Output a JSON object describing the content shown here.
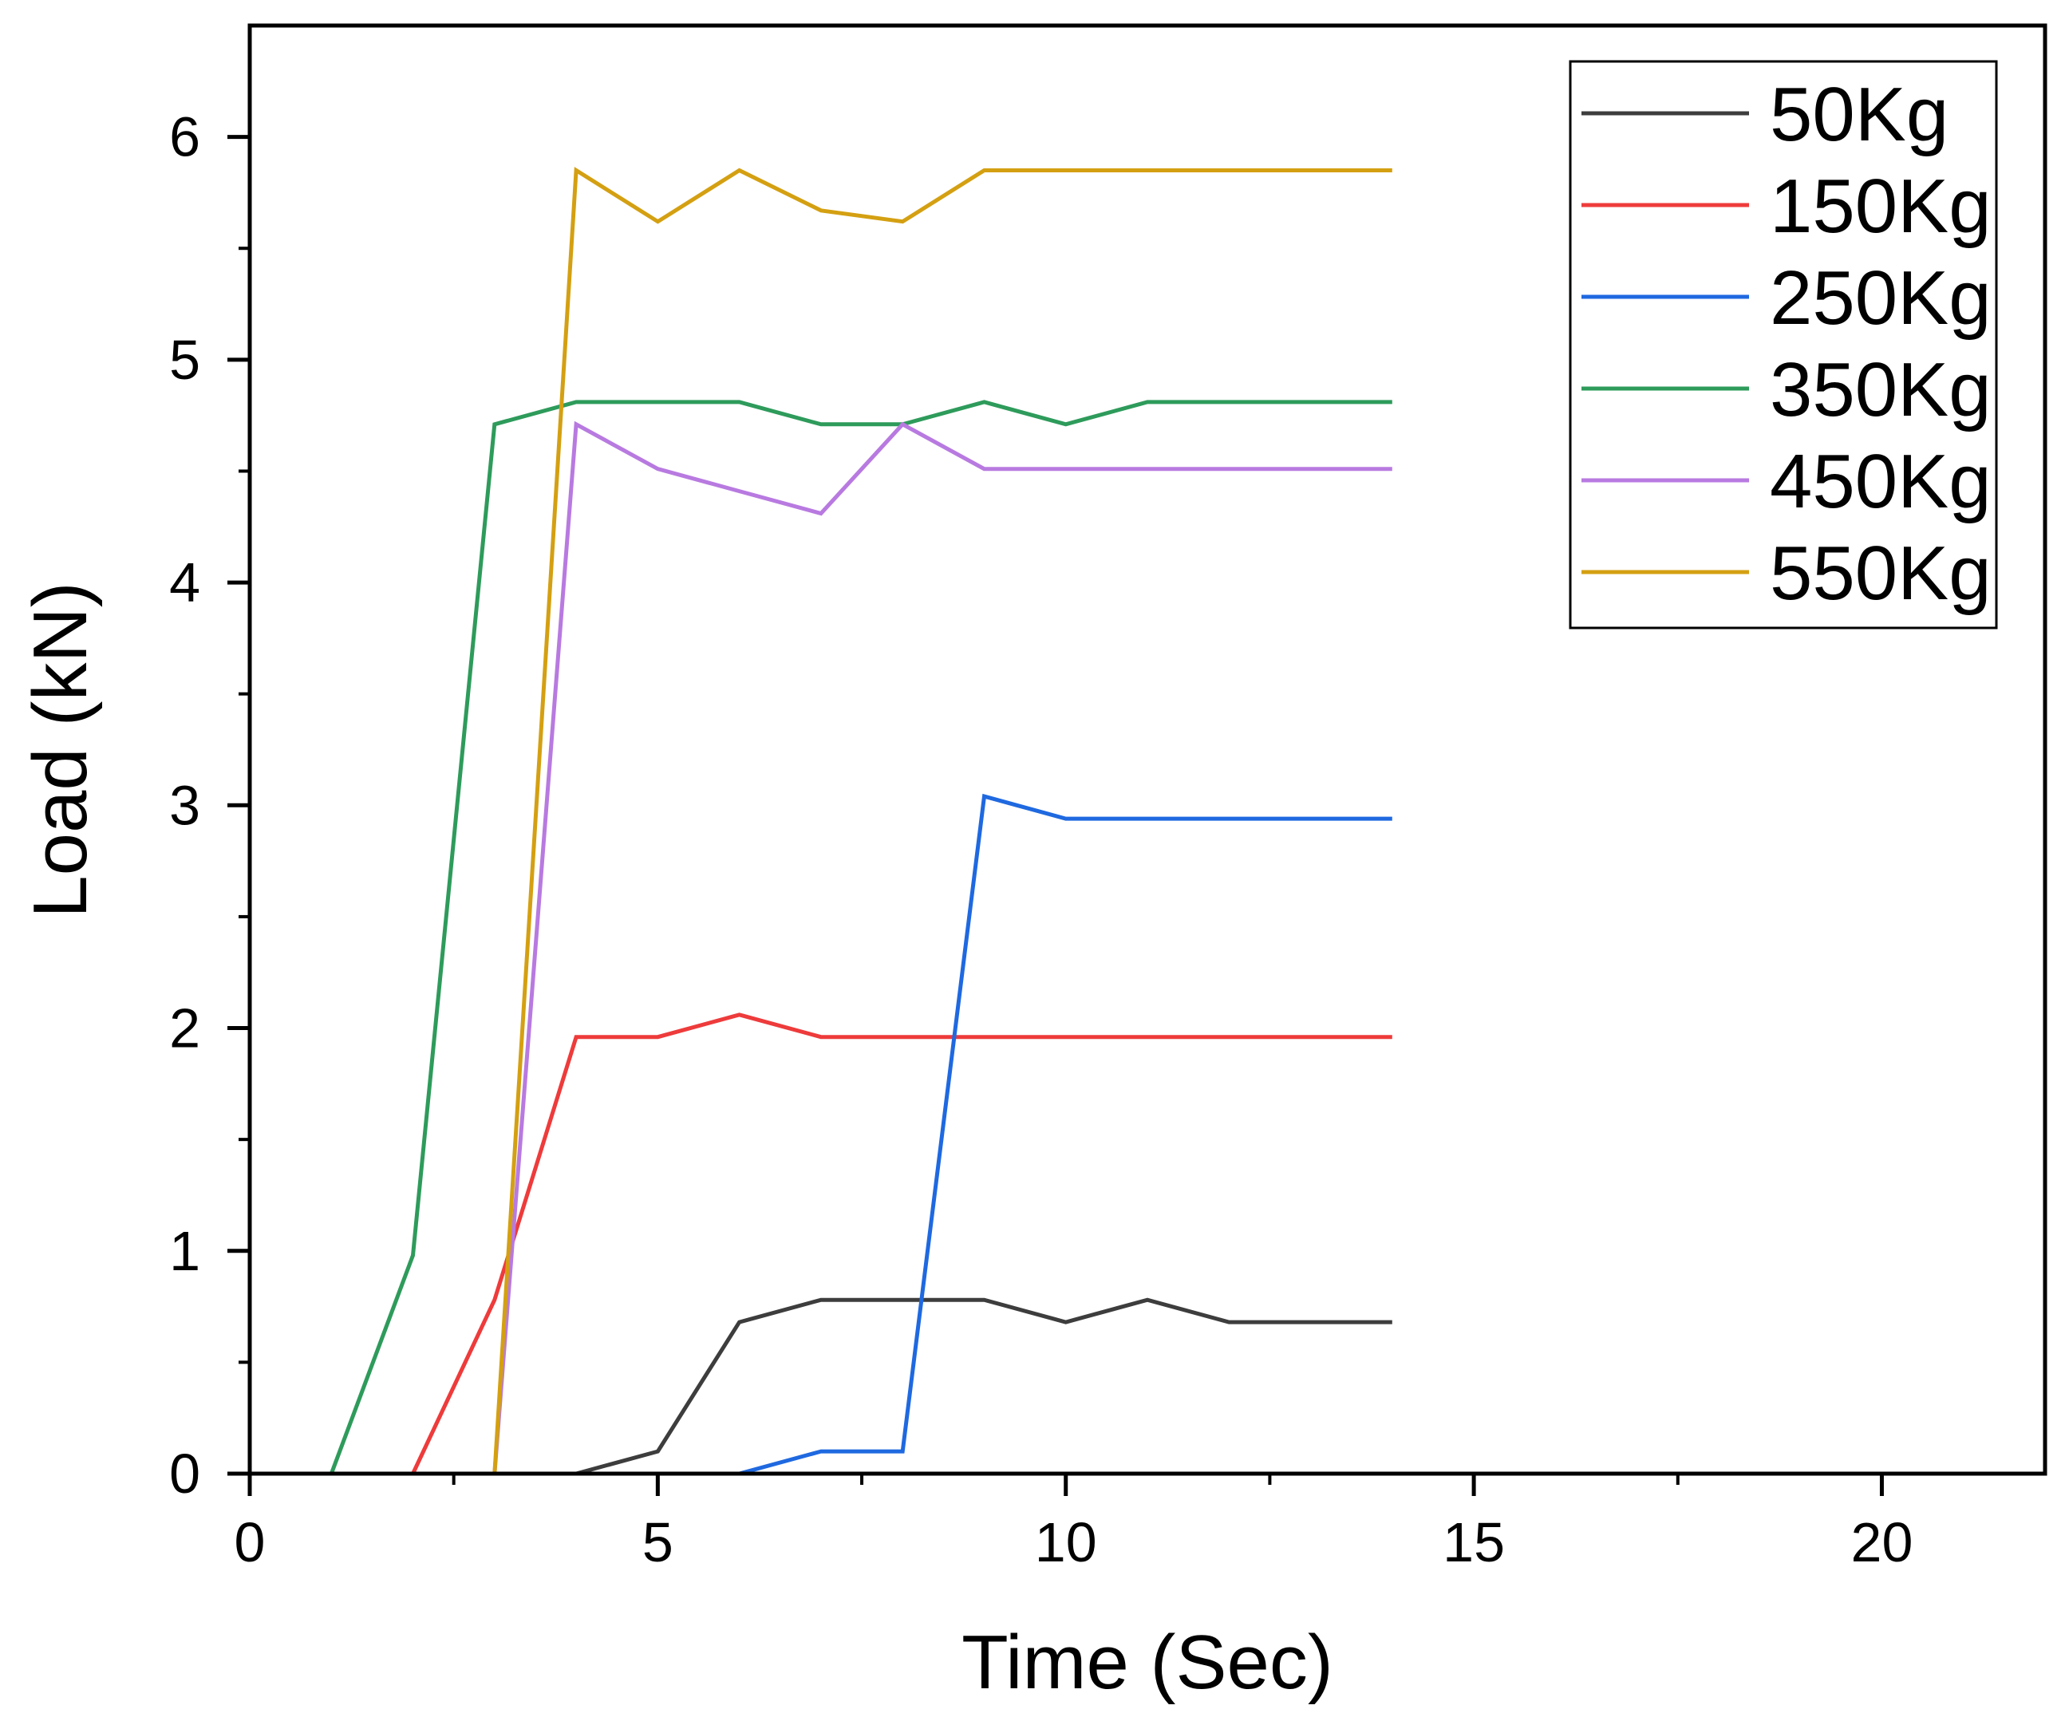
{
  "chart_data": {
    "type": "line",
    "title": "",
    "xlabel": "Time (Sec)",
    "ylabel": "Load (kN)",
    "xlim": [
      0,
      22
    ],
    "ylim": [
      0,
      6.5
    ],
    "xticks": [
      0,
      5,
      10,
      15,
      20
    ],
    "yticks": [
      0,
      1,
      2,
      3,
      4,
      5,
      6
    ],
    "xtick_labels": [
      "0",
      "5",
      "10",
      "15",
      "20"
    ],
    "ytick_labels": [
      "0",
      "1",
      "2",
      "3",
      "4",
      "5",
      "6"
    ],
    "grid": false,
    "legend_position": "top-right",
    "series": [
      {
        "name": "50Kg",
        "color": "#3d3d3d",
        "x": [
          4,
          5,
          6,
          7,
          8,
          9,
          10,
          11,
          12,
          13,
          14
        ],
        "y": [
          0,
          0.1,
          0.68,
          0.78,
          0.78,
          0.78,
          0.68,
          0.78,
          0.68,
          0.68,
          0.68
        ]
      },
      {
        "name": "150Kg",
        "color": "#ee3b3b",
        "x": [
          2,
          3,
          4,
          5,
          6,
          7,
          8,
          9,
          10,
          11,
          12,
          13,
          14
        ],
        "y": [
          0,
          0.78,
          1.96,
          1.96,
          2.06,
          1.96,
          1.96,
          1.96,
          1.96,
          1.96,
          1.96,
          1.96,
          1.96
        ]
      },
      {
        "name": "250Kg",
        "color": "#1f69e0",
        "x": [
          3,
          4,
          5,
          6,
          7,
          8,
          9,
          10,
          11,
          12,
          13,
          14
        ],
        "y": [
          0,
          0,
          0,
          0,
          0.1,
          0.1,
          3.04,
          2.94,
          2.94,
          2.94,
          2.94,
          2.94
        ]
      },
      {
        "name": "350Kg",
        "color": "#2e9b5b",
        "x": [
          1,
          2,
          3,
          4,
          5,
          6,
          7,
          8,
          9,
          10,
          11,
          12,
          13,
          14
        ],
        "y": [
          0,
          0.98,
          4.71,
          4.81,
          4.81,
          4.81,
          4.71,
          4.71,
          4.81,
          4.71,
          4.81,
          4.81,
          4.81,
          4.81
        ]
      },
      {
        "name": "450Kg",
        "color": "#b87ae0",
        "x": [
          3,
          4,
          5,
          6,
          7,
          8,
          9,
          10,
          11,
          12,
          13,
          14
        ],
        "y": [
          0,
          4.71,
          4.51,
          4.41,
          4.31,
          4.71,
          4.51,
          4.51,
          4.51,
          4.51,
          4.51,
          4.51
        ]
      },
      {
        "name": "550Kg",
        "color": "#d4a012",
        "x": [
          1,
          2,
          3,
          4,
          5,
          6,
          7,
          8,
          9,
          10,
          11,
          12,
          13,
          14
        ],
        "y": [
          0,
          0,
          0,
          5.85,
          5.62,
          5.85,
          5.67,
          5.62,
          5.85,
          5.85,
          5.85,
          5.85,
          5.85,
          5.85
        ]
      }
    ]
  }
}
